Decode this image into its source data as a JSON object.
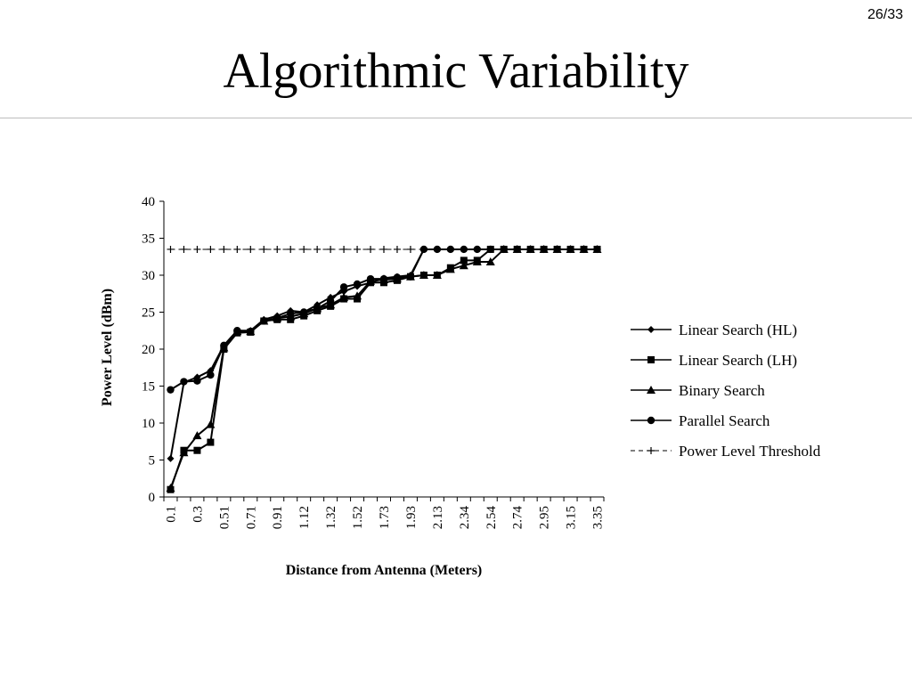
{
  "slide": {
    "number": "26/33",
    "title": "Algorithmic Variability"
  },
  "chart_data": {
    "type": "line",
    "title": "",
    "xlabel": "Distance from Antenna (Meters)",
    "ylabel": "Power Level (dBm)",
    "ylim": [
      0,
      40
    ],
    "yticks": [
      0,
      5,
      10,
      15,
      20,
      25,
      30,
      35,
      40
    ],
    "x": [
      0.1,
      0.2,
      0.3,
      0.41,
      0.51,
      0.61,
      0.71,
      0.81,
      0.91,
      1.02,
      1.12,
      1.22,
      1.32,
      1.42,
      1.52,
      1.63,
      1.73,
      1.83,
      1.93,
      2.03,
      2.13,
      2.24,
      2.34,
      2.44,
      2.54,
      2.64,
      2.74,
      2.85,
      2.95,
      3.05,
      3.15,
      3.25,
      3.35
    ],
    "xtick_labels": [
      "0.1",
      "0.3",
      "0.51",
      "0.71",
      "0.91",
      "1.12",
      "1.32",
      "1.52",
      "1.73",
      "1.93",
      "2.13",
      "2.34",
      "2.54",
      "2.74",
      "2.95",
      "3.15",
      "3.35"
    ],
    "grid": false,
    "legend_position": "right",
    "series": [
      {
        "name": "Linear Search (HL)",
        "marker": "diamond",
        "dash": "solid",
        "values": [
          5.2,
          15.5,
          16.2,
          17.1,
          20.5,
          22.5,
          22.5,
          24.0,
          24.5,
          25.2,
          25.0,
          26.0,
          27.0,
          27.8,
          28.5,
          29.0,
          29.6,
          29.8,
          30.0,
          33.5,
          33.5,
          33.5,
          33.5,
          33.5,
          33.5,
          33.5,
          33.5,
          33.5,
          33.5,
          33.5,
          33.5,
          33.5,
          33.5
        ]
      },
      {
        "name": "Linear Search (LH)",
        "marker": "square",
        "dash": "solid",
        "values": [
          1.0,
          6.3,
          6.3,
          7.4,
          20.0,
          22.2,
          22.3,
          23.8,
          24.0,
          24.0,
          24.5,
          25.2,
          25.8,
          26.8,
          26.8,
          29.0,
          29.0,
          29.3,
          29.8,
          30.0,
          30.0,
          31.0,
          32.0,
          32.0,
          33.5,
          33.5,
          33.5,
          33.5,
          33.5,
          33.5,
          33.5,
          33.5,
          33.5
        ]
      },
      {
        "name": "Binary Search",
        "marker": "triangle",
        "dash": "solid",
        "values": [
          1.2,
          6.0,
          8.3,
          9.8,
          20.2,
          22.4,
          22.4,
          23.8,
          24.2,
          24.4,
          24.8,
          25.5,
          26.0,
          27.0,
          27.2,
          29.2,
          29.4,
          29.5,
          29.8,
          30.0,
          30.0,
          30.8,
          31.3,
          31.8,
          31.8,
          33.5,
          33.5,
          33.5,
          33.5,
          33.5,
          33.5,
          33.5,
          33.5
        ]
      },
      {
        "name": "Parallel Search",
        "marker": "circle",
        "dash": "solid",
        "values": [
          14.5,
          15.6,
          15.7,
          16.5,
          20.5,
          22.5,
          22.4,
          23.8,
          24.2,
          24.8,
          25.0,
          25.5,
          26.5,
          28.4,
          28.8,
          29.5,
          29.5,
          29.7,
          29.8,
          33.5,
          33.5,
          33.5,
          33.5,
          33.5,
          33.5,
          33.5,
          33.5,
          33.5,
          33.5,
          33.5,
          33.5,
          33.5,
          33.5
        ]
      },
      {
        "name": "Power Level Threshold",
        "marker": "plus",
        "dash": "dashed",
        "values": [
          33.5,
          33.5,
          33.5,
          33.5,
          33.5,
          33.5,
          33.5,
          33.5,
          33.5,
          33.5,
          33.5,
          33.5,
          33.5,
          33.5,
          33.5,
          33.5,
          33.5,
          33.5,
          33.5,
          33.5,
          33.5,
          33.5,
          33.5,
          33.5,
          33.5,
          33.5,
          33.5,
          33.5,
          33.5,
          33.5,
          33.5,
          33.5,
          33.5
        ]
      }
    ]
  }
}
